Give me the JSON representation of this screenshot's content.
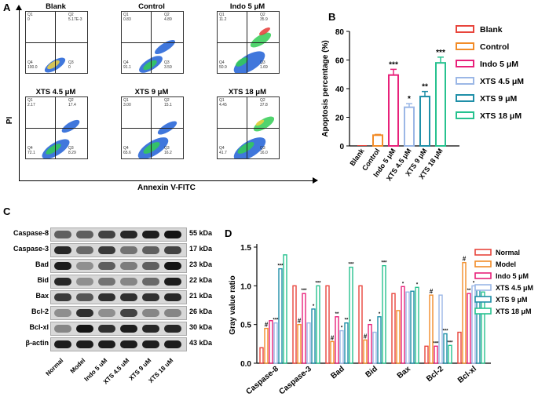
{
  "panel_a": {
    "letter": "A",
    "y_axis_label": "PI",
    "x_axis_label": "Annexin V-FITC",
    "plots": [
      {
        "title": "Blank",
        "q1": "Q1",
        "q1_val": "0",
        "q2": "Q2",
        "q2_val": "5.17E-3",
        "q3": "Q3",
        "q3_val": "0",
        "q4": "Q4",
        "q4_val": "100.0"
      },
      {
        "title": "Control",
        "q1": "Q1",
        "q1_val": "0.83",
        "q2": "Q2",
        "q2_val": "4.89",
        "q3": "Q3",
        "q3_val": "3.59",
        "q4": "Q4",
        "q4_val": "91.1"
      },
      {
        "title": "Indo 5 μM",
        "q1": "Q1",
        "q1_val": "11.2",
        "q2": "Q2",
        "q2_val": "35.9",
        "q3": "Q3",
        "q3_val": "1.69",
        "q4": "Q4",
        "q4_val": "50.9"
      },
      {
        "title": "XTS 4.5 μM",
        "q1": "Q1",
        "q1_val": "2.17",
        "q2": "Q2",
        "q2_val": "17.4",
        "q3": "Q3",
        "q3_val": "8.29",
        "q4": "Q4",
        "q4_val": "72.1"
      },
      {
        "title": "XTS 9 μM",
        "q1": "Q1",
        "q1_val": "3.00",
        "q2": "Q2",
        "q2_val": "15.1",
        "q3": "Q3",
        "q3_val": "16.2",
        "q4": "Q4",
        "q4_val": "65.6"
      },
      {
        "title": "XTS 18 μM",
        "q1": "Q1",
        "q1_val": "4.45",
        "q2": "Q2",
        "q2_val": "37.8",
        "q3": "Q3",
        "q3_val": "16.0",
        "q4": "Q4",
        "q4_val": "41.7"
      }
    ]
  },
  "panel_c": {
    "letter": "C",
    "proteins": [
      {
        "name": "Caspase-8",
        "kda": "55 kDa",
        "intensity": [
          0.55,
          0.55,
          0.7,
          0.85,
          0.9,
          0.95
        ]
      },
      {
        "name": "Caspase-3",
        "kda": "17 kDa",
        "intensity": [
          0.85,
          0.5,
          0.75,
          0.45,
          0.55,
          0.7
        ]
      },
      {
        "name": "Bad",
        "kda": "23 kDa",
        "intensity": [
          0.9,
          0.3,
          0.55,
          0.4,
          0.55,
          0.95
        ]
      },
      {
        "name": "Bid",
        "kda": "22 kDa",
        "intensity": [
          0.85,
          0.3,
          0.45,
          0.35,
          0.5,
          0.9
        ]
      },
      {
        "name": "Bax",
        "kda": "21 kDa",
        "intensity": [
          0.75,
          0.6,
          0.8,
          0.8,
          0.8,
          0.85
        ]
      },
      {
        "name": "Bcl-2",
        "kda": "26 kDa",
        "intensity": [
          0.3,
          0.8,
          0.3,
          0.7,
          0.35,
          0.35
        ]
      },
      {
        "name": "Bcl-xl",
        "kda": "30 kDa",
        "intensity": [
          0.35,
          0.95,
          0.8,
          0.9,
          0.85,
          0.85
        ]
      },
      {
        "name": "β-actin",
        "kda": "43 kDa",
        "intensity": [
          0.9,
          0.9,
          0.9,
          0.9,
          0.9,
          0.9
        ]
      }
    ],
    "lanes": [
      "Normal",
      "Model",
      "Indo 5 uM",
      "XTS 4.5 uM",
      "XTS 9 uM",
      "XTS 18 uM"
    ]
  },
  "colors": {
    "blank": "#e8453c",
    "control": "#f28c28",
    "indo": "#e8217a",
    "xts45": "#9bb7e6",
    "xts9": "#1f8fa8",
    "xts18": "#27c28f"
  },
  "chart_data": [
    {
      "type": "bar",
      "panel": "B",
      "title": "",
      "ylabel": "Apoptosis percentage (%)",
      "xlabel": "",
      "ylim": [
        0,
        80
      ],
      "yticks": [
        "0",
        "20",
        "40",
        "60",
        "80"
      ],
      "categories": [
        "Blank",
        "Control",
        "Indo 5 μM",
        "XTS 4.5 μM",
        "XTS 9 μM",
        "XTS 18 μM"
      ],
      "values": [
        0,
        7.5,
        49.5,
        27,
        34.5,
        58
      ],
      "errors": [
        0,
        0.5,
        4,
        2.5,
        3.5,
        4
      ],
      "significance": [
        "",
        "",
        "***",
        "*",
        "**",
        "***"
      ],
      "legend": [
        "Blank",
        "Control",
        "Indo 5 μM",
        "XTS 4.5 μM",
        "XTS 9 μM",
        "XTS 18 μM"
      ],
      "legend_position": "right"
    },
    {
      "type": "bar",
      "panel": "D",
      "title": "",
      "ylabel": "Gray value ratio",
      "ylim": [
        0,
        1.5
      ],
      "yticks": [
        "0.0",
        "0.5",
        "1.0",
        "1.5"
      ],
      "categories": [
        "Caspase-8",
        "Caspase-3",
        "Bad",
        "Bid",
        "Bax",
        "Bcl-2",
        "Bcl-xl"
      ],
      "series": [
        {
          "name": "Normal",
          "values": [
            0.2,
            1.0,
            1.0,
            1.0,
            0.9,
            0.22,
            0.4
          ]
        },
        {
          "name": "Model",
          "values": [
            0.45,
            0.5,
            0.28,
            0.3,
            0.68,
            0.88,
            1.3
          ]
        },
        {
          "name": "Indo 5 μM",
          "values": [
            0.55,
            0.9,
            0.6,
            0.5,
            0.99,
            0.22,
            0.9
          ]
        },
        {
          "name": "XTS 4.5 μM",
          "values": [
            0.52,
            0.52,
            0.42,
            0.4,
            0.92,
            0.88,
            1.0
          ]
        },
        {
          "name": "XTS 9 μM",
          "values": [
            1.22,
            0.7,
            0.52,
            0.6,
            0.93,
            0.38,
            0.95
          ]
        },
        {
          "name": "XTS 18 μM",
          "values": [
            1.4,
            1.0,
            1.24,
            1.26,
            0.98,
            0.23,
            0.92
          ]
        }
      ],
      "annotations": [
        [
          "",
          "#",
          "",
          "***",
          "***"
        ],
        [
          "",
          "#",
          "***",
          "",
          "*",
          "***"
        ],
        [
          "",
          "#",
          "**",
          "*",
          "**",
          "***"
        ],
        [
          "",
          "#",
          "*",
          "",
          "*",
          "***"
        ],
        [
          "",
          "",
          "*",
          "",
          "",
          "*"
        ],
        [
          "",
          "#",
          "***",
          "",
          "***",
          "***"
        ],
        [
          "",
          "#",
          "**",
          "*",
          "**",
          "**"
        ]
      ],
      "legend_position": "right"
    }
  ]
}
